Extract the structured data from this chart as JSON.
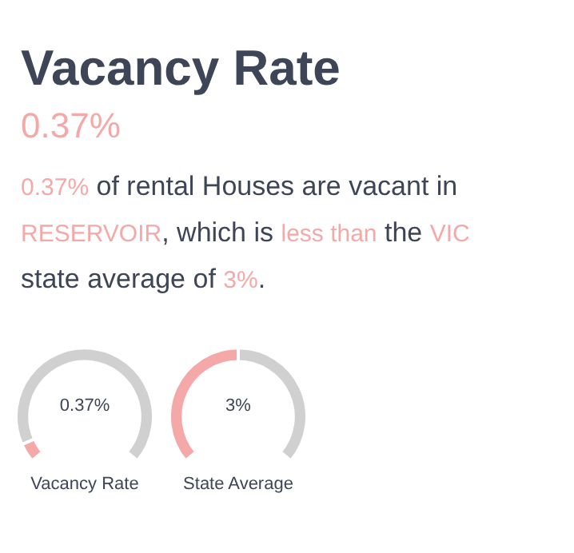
{
  "chart_data": [
    {
      "type": "other",
      "title": "Vacancy Rate",
      "subtitle": "0.37%",
      "annotations": [
        "0.37%",
        " of rental Houses are vacant in ",
        "RESERVOIR",
        ", which is ",
        "less than",
        " the ",
        "VIC",
        " state average of ",
        "3%",
        "."
      ]
    },
    {
      "type": "donut",
      "xlabel": "Vacancy Rate",
      "categories": [
        null,
        null
      ],
      "values": [
        6.2,
        93.8
      ],
      "colors": [
        "#f4a9a8",
        "#d0d0d0"
      ],
      "annotations": [
        "0.37%"
      ]
    },
    {
      "type": "donut",
      "xlabel": "State Average",
      "categories": [
        null,
        null
      ],
      "values": [
        50,
        50
      ],
      "colors": [
        "#f4a9a8",
        "#d0d0d0"
      ],
      "annotations": [
        "3%"
      ]
    }
  ]
}
